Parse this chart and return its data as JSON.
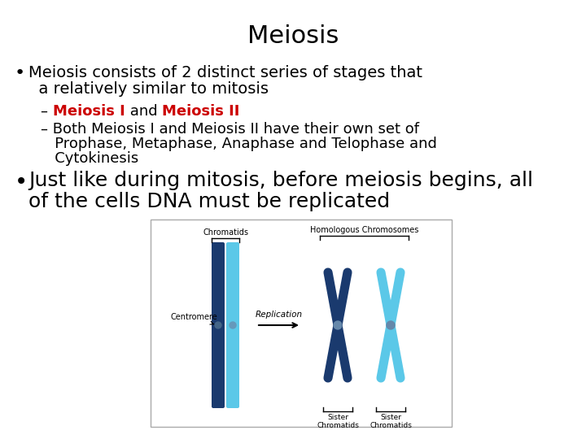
{
  "title": "Meiosis",
  "title_fontsize": 22,
  "title_color": "#000000",
  "background_color": "#ffffff",
  "bullet1_line1": "Meiosis consists of 2 distinct series of stages that",
  "bullet1_line2": "  a relatively similar to mitosis",
  "sub1_parts": [
    {
      "text": "– ",
      "color": "#000000",
      "bold": false
    },
    {
      "text": "Meiosis I",
      "color": "#cc0000",
      "bold": true
    },
    {
      "text": " and ",
      "color": "#000000",
      "bold": false
    },
    {
      "text": "Meiosis II",
      "color": "#cc0000",
      "bold": true
    }
  ],
  "sub2_line1": "– Both Meiosis I and Meiosis II have their own set of",
  "sub2_line2": "   Prophase, Metaphase, Anaphase and Telophase and",
  "sub2_line3": "   Cytokinesis",
  "bullet2_line1": "Just like during mitosis, before meiosis begins, all",
  "bullet2_line2": "of the cells DNA must be replicated",
  "red_color": "#cc0000",
  "black_color": "#000000",
  "dark_blue": "#1a3a6e",
  "light_blue": "#5bc8e8",
  "bullet1_fontsize": 14,
  "sub_fontsize": 13,
  "bullet2_fontsize": 18
}
